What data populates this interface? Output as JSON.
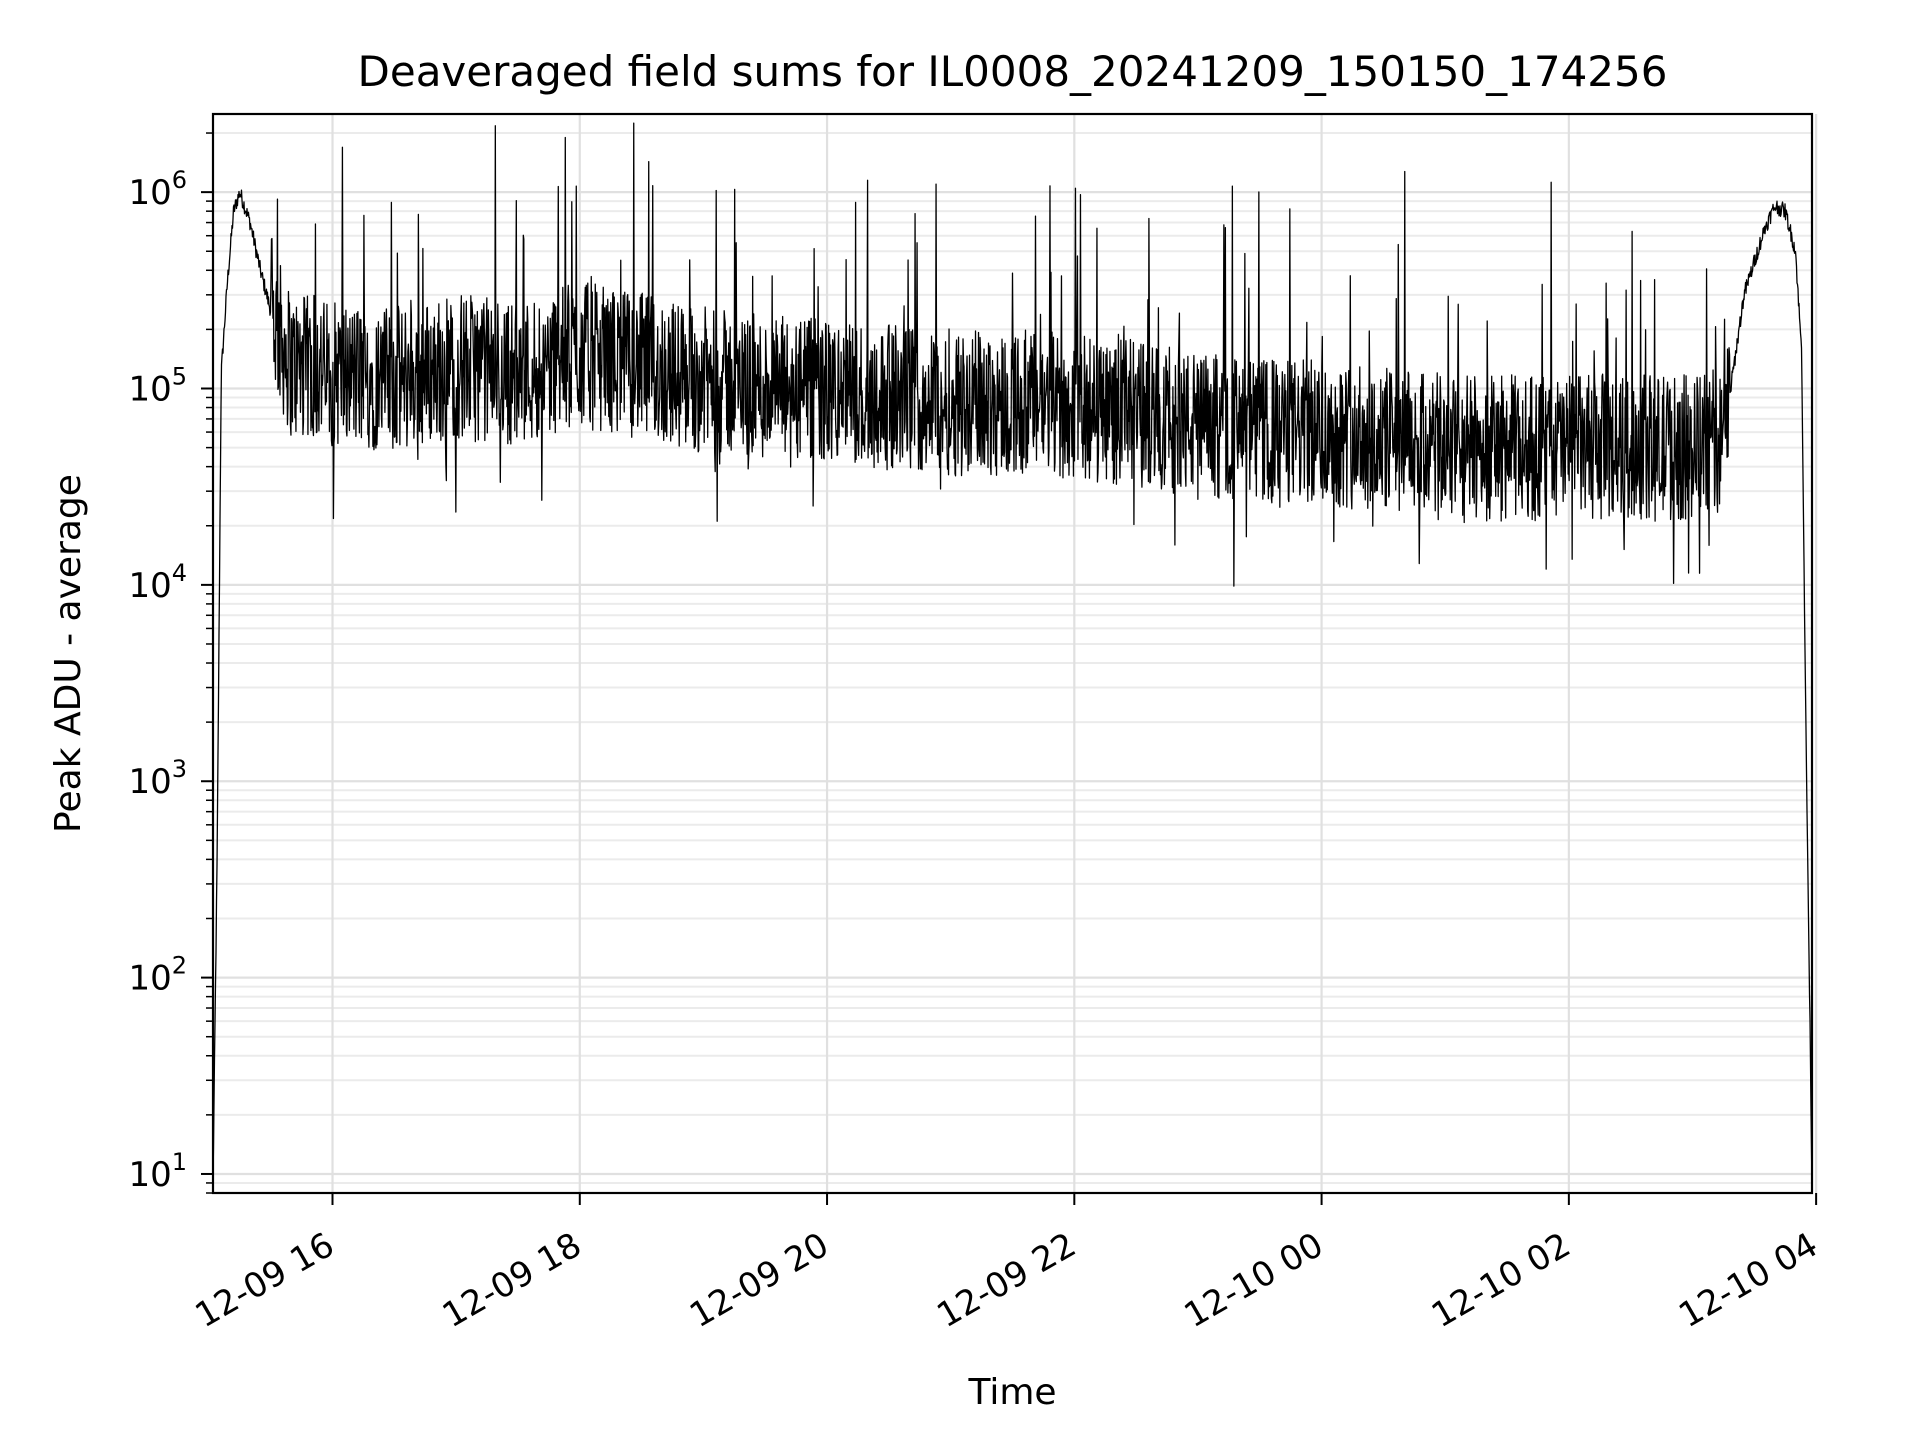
{
  "chart_data": {
    "type": "line",
    "title": "Deaveraged field sums for IL0008_20241209_150150_174256",
    "xlabel": "Time",
    "ylabel": "Peak ADU - average",
    "x_range": [
      "2024-12-09 15:02",
      "2024-12-10 03:58"
    ],
    "ylim": [
      8,
      2500000
    ],
    "yscale": "log",
    "grid": "major and minor",
    "line_color": "#000000",
    "x_ticks": [
      "12-09 16",
      "12-09 18",
      "12-09 20",
      "12-09 22",
      "12-10 00",
      "12-10 02",
      "12-10 04"
    ],
    "y_ticks": [
      {
        "value": 10,
        "base": "10",
        "exp": "1"
      },
      {
        "value": 100,
        "base": "10",
        "exp": "2"
      },
      {
        "value": 1000,
        "base": "10",
        "exp": "3"
      },
      {
        "value": 10000,
        "base": "10",
        "exp": "4"
      },
      {
        "value": 100000,
        "base": "10",
        "exp": "5"
      },
      {
        "value": 1000000,
        "base": "10",
        "exp": "6"
      }
    ],
    "series": [
      {
        "values_note": "",
        "x": [
          "2024-12-09 15:02",
          "2024-12-09 15:04",
          "2024-12-09 15:06",
          "2024-12-09 15:09",
          "2024-12-09 15:12",
          "2024-12-09 15:15",
          "2024-12-09 15:20",
          "2024-12-09 15:25",
          "2024-12-09 15:30",
          "2024-12-09 15:40",
          "2024-12-09 16:00",
          "2024-12-09 16:30",
          "2024-12-09 17:00",
          "2024-12-09 17:30",
          "2024-12-09 18:00",
          "2024-12-09 18:30",
          "2024-12-09 19:00",
          "2024-12-09 19:30",
          "2024-12-09 20:00",
          "2024-12-09 20:30",
          "2024-12-09 21:00",
          "2024-12-09 21:30",
          "2024-12-09 22:00",
          "2024-12-09 22:30",
          "2024-12-09 23:00",
          "2024-12-09 23:30",
          "2024-12-10 00:00",
          "2024-12-10 00:30",
          "2024-12-10 01:00",
          "2024-12-10 01:30",
          "2024-12-10 02:00",
          "2024-12-10 02:30",
          "2024-12-10 03:00",
          "2024-12-10 03:15",
          "2024-12-10 03:25",
          "2024-12-10 03:35",
          "2024-12-10 03:40",
          "2024-12-10 03:45",
          "2024-12-10 03:50",
          "2024-12-10 03:53",
          "2024-12-10 03:55",
          "2024-12-10 03:57",
          "2024-12-10 03:58"
        ],
        "y": [
          9,
          400,
          120000,
          350000,
          800000,
          1000000,
          700000,
          400000,
          250000,
          130000,
          120000,
          110000,
          130000,
          120000,
          150000,
          130000,
          110000,
          100000,
          95000,
          90000,
          85000,
          85000,
          80000,
          75000,
          65000,
          60000,
          60000,
          55000,
          50000,
          50000,
          50000,
          50000,
          50000,
          55000,
          300000,
          650000,
          850000,
          800000,
          500000,
          150000,
          2000,
          60,
          9
        ]
      }
    ]
  }
}
